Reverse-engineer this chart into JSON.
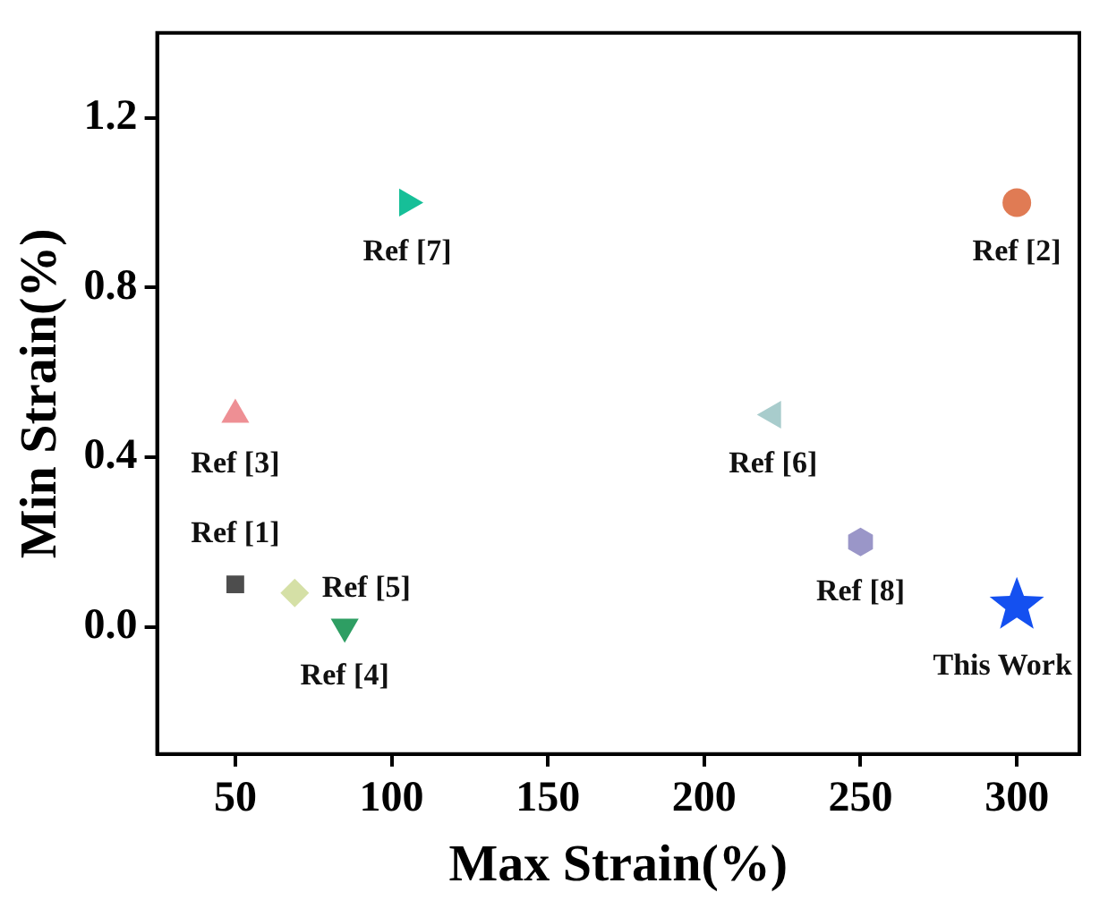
{
  "chart_data": {
    "type": "scatter",
    "xlabel": "Max Strain(%)",
    "ylabel": "Min Strain(%)",
    "xlim": [
      25,
      320
    ],
    "xticks": [
      50,
      100,
      150,
      200,
      250,
      300
    ],
    "ylim": [
      -0.3,
      1.4
    ],
    "yticks": [
      {
        "value": 0,
        "label": "0.0"
      },
      0.4,
      0.8,
      1.2
    ],
    "grid": false,
    "legend": false,
    "series": [
      {
        "name": "Ref [1]",
        "color": "#4d4d4d",
        "marker": "square",
        "x": [
          50
        ],
        "values": [
          0.1
        ]
      },
      {
        "name": "Ref [2]",
        "color": "#e07b54",
        "marker": "circle",
        "x": [
          300
        ],
        "values": [
          1.0
        ]
      },
      {
        "name": "Ref [3]",
        "color": "#ee8f94",
        "marker": "triangle",
        "x": [
          50
        ],
        "values": [
          0.5
        ]
      },
      {
        "name": "Ref [4]",
        "color": "#2e9e63",
        "marker": "triangle-down",
        "x": [
          85
        ],
        "values": [
          0.0
        ]
      },
      {
        "name": "Ref [5]",
        "color": "#d5e0a6",
        "marker": "diamond",
        "x": [
          69
        ],
        "values": [
          0.08
        ]
      },
      {
        "name": "Ref [6]",
        "color": "#a8cccc",
        "marker": "triangle-left",
        "x": [
          222
        ],
        "values": [
          0.5
        ]
      },
      {
        "name": "Ref [7]",
        "color": "#16bf98",
        "marker": "triangle-right",
        "x": [
          105
        ],
        "values": [
          1.0
        ]
      },
      {
        "name": "Ref [8]",
        "color": "#9a96c8",
        "x": [
          250
        ],
        "values": [
          0.2
        ]
      },
      {
        "name": "This Work",
        "color": "#1450f0",
        "marker": "star",
        "x": [
          300
        ],
        "values": [
          0.05
        ]
      }
    ]
  }
}
